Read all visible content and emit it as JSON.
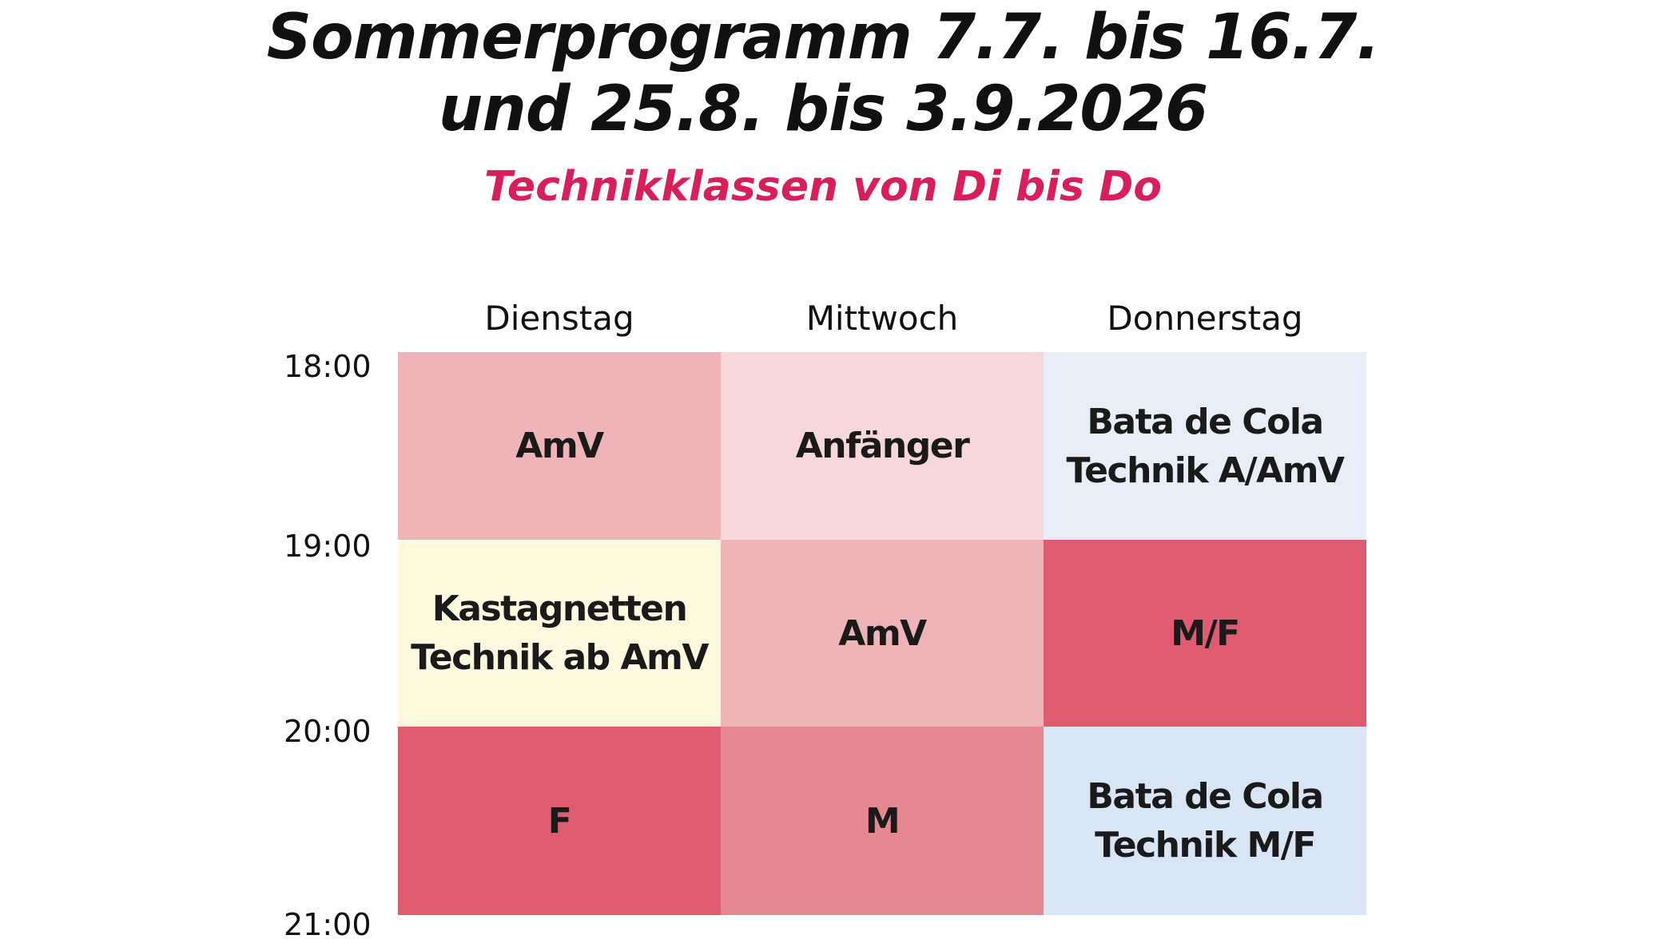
{
  "header": {
    "title_line_1": "Sommerprogramm 7.7. bis 16.7.",
    "title_line_2": "und 25.8. bis 3.9.2026",
    "subtitle": "Technikklassen von Di bis Do",
    "subtitle_color": "#d81f5a"
  },
  "schedule": {
    "days": [
      "Dienstag",
      "Mittwoch",
      "Donnerstag"
    ],
    "times": [
      "18:00",
      "19:00",
      "20:00",
      "21:00"
    ],
    "slots": [
      {
        "day": "Dienstag",
        "start": "18:00",
        "end": "19:00",
        "label": "AmV",
        "color": "#efb4b7"
      },
      {
        "day": "Mittwoch",
        "start": "18:00",
        "end": "19:00",
        "label": "Anfänger",
        "color": "#f6d8da"
      },
      {
        "day": "Donnerstag",
        "start": "18:00",
        "end": "19:00",
        "label": "Bata de Cola\nTechnik A/AmV",
        "color": "#e7eef8"
      },
      {
        "day": "Dienstag",
        "start": "19:00",
        "end": "20:00",
        "label": "Kastagnetten\nTechnik ab AmV",
        "color": "#fdf9df"
      },
      {
        "day": "Mittwoch",
        "start": "19:00",
        "end": "20:00",
        "label": "AmV",
        "color": "#efb4b7"
      },
      {
        "day": "Donnerstag",
        "start": "19:00",
        "end": "20:00",
        "label": "M/F",
        "color": "#df5b6f"
      },
      {
        "day": "Dienstag",
        "start": "20:00",
        "end": "21:00",
        "label": "F",
        "color": "#df5b6f"
      },
      {
        "day": "Mittwoch",
        "start": "20:00",
        "end": "21:00",
        "label": "M",
        "color": "#e58891"
      },
      {
        "day": "Donnerstag",
        "start": "20:00",
        "end": "21:00",
        "label": "Bata de Cola\nTechnik M/F",
        "color": "#d8e5f4"
      }
    ]
  }
}
